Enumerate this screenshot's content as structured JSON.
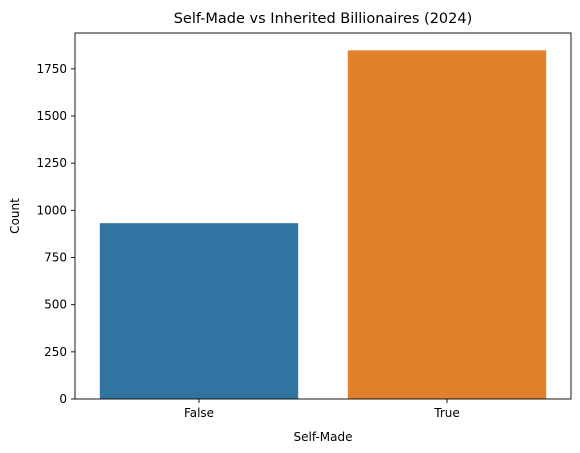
{
  "chart_data": {
    "type": "bar",
    "title": "Self-Made vs Inherited Billionaires (2024)",
    "xlabel": "Self-Made",
    "ylabel": "Count",
    "categories": [
      "False",
      "True"
    ],
    "values": [
      932,
      1848
    ],
    "colors": [
      "#3274a1",
      "#e1812c"
    ],
    "ylim": [
      0,
      1940
    ],
    "yticks": [
      0,
      250,
      500,
      750,
      1000,
      1250,
      1500,
      1750
    ],
    "grid": false,
    "legend": "none"
  }
}
